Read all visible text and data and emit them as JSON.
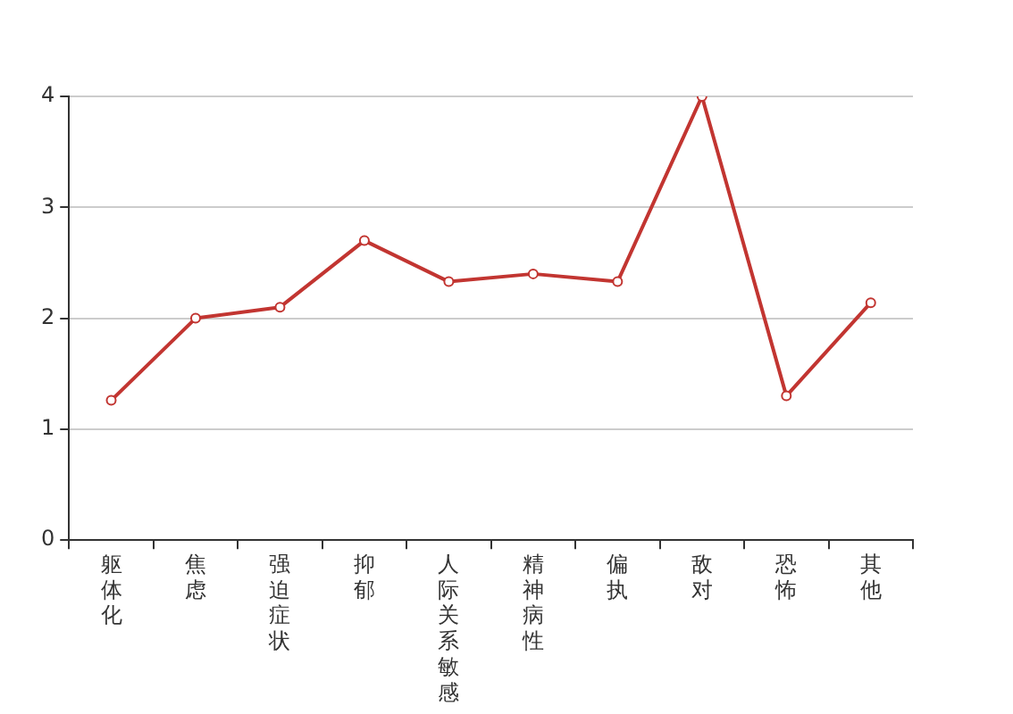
{
  "chart_data": {
    "type": "line",
    "categories": [
      "躯体化",
      "焦虑",
      "强迫症状",
      "抑郁",
      "人际关系敏感",
      "精神病性",
      "偏执",
      "敌对",
      "恐怖",
      "其他"
    ],
    "series": [
      {
        "color": "#c23531",
        "values": [
          1.26,
          2.0,
          2.1,
          2.7,
          2.33,
          2.4,
          2.33,
          4.0,
          1.3,
          2.14
        ]
      }
    ],
    "ylim": [
      0,
      4
    ],
    "yticks": [
      0,
      1,
      2,
      3,
      4
    ],
    "grid": "y",
    "legend": false,
    "marker": "circle",
    "line_style": "solid"
  }
}
